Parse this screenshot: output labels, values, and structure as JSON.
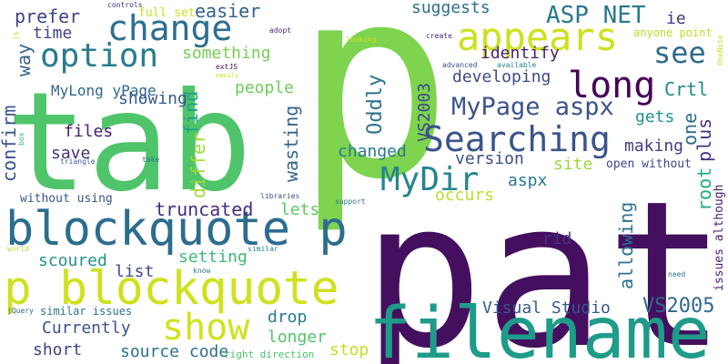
{
  "words": [
    {
      "text": "p",
      "color": "#7ed34f"
    },
    {
      "text": "path",
      "color": "#440f5e"
    },
    {
      "text": "tab",
      "color": "#4fc46a"
    },
    {
      "text": "filename",
      "color": "#1e9c89"
    },
    {
      "text": "blockquote p",
      "color": "#2c6d8e"
    },
    {
      "text": "p blockquote",
      "color": "#cfe11c"
    },
    {
      "text": "change",
      "color": "#2d6e8e"
    },
    {
      "text": "appears",
      "color": "#cde11d"
    },
    {
      "text": "option",
      "color": "#287d8e"
    },
    {
      "text": "long",
      "color": "#450458"
    },
    {
      "text": "see",
      "color": "#2f6b8e"
    },
    {
      "text": "Searching",
      "color": "#3a548c"
    },
    {
      "text": "MyDir",
      "color": "#25858e"
    },
    {
      "text": "MyPage aspx",
      "color": "#3b538b"
    },
    {
      "text": "show",
      "color": "#d0e11c"
    },
    {
      "text": "ASP NET",
      "color": "#2a778e"
    },
    {
      "text": "easier",
      "color": "#35608d"
    },
    {
      "text": "prefer",
      "color": "#414487"
    },
    {
      "text": "suggests",
      "color": "#2e6f8e"
    },
    {
      "text": "something",
      "color": "#75d054"
    },
    {
      "text": "identify",
      "color": "#481f70"
    },
    {
      "text": "developing",
      "color": "#3e4a89"
    },
    {
      "text": "Oddly",
      "color": "#2c728e"
    },
    {
      "text": "VS2003",
      "color": "#3f4788"
    },
    {
      "text": "MyLong yPage",
      "color": "#31688e"
    },
    {
      "text": "people",
      "color": "#6ccd5a"
    },
    {
      "text": "showing",
      "color": "#39568c"
    },
    {
      "text": "time",
      "color": "#404688"
    },
    {
      "text": "way",
      "color": "#33628d"
    },
    {
      "text": "files",
      "color": "#481b6d"
    },
    {
      "text": "save",
      "color": "#46327e"
    },
    {
      "text": "confirm",
      "color": "#3a548c"
    },
    {
      "text": "find",
      "color": "#1fa088"
    },
    {
      "text": "wasting",
      "color": "#32658e"
    },
    {
      "text": "differ",
      "color": "#a2da37"
    },
    {
      "text": "changed",
      "color": "#29788e"
    },
    {
      "text": "version",
      "color": "#3d4e8a"
    },
    {
      "text": "site",
      "color": "#9dd93b"
    },
    {
      "text": "making",
      "color": "#433e85"
    },
    {
      "text": "open without",
      "color": "#3e4989"
    },
    {
      "text": "Crtl",
      "color": "#23898e"
    },
    {
      "text": "gets",
      "color": "#21918c"
    },
    {
      "text": "one",
      "color": "#306a8e"
    },
    {
      "text": "plus",
      "color": "#46307e"
    },
    {
      "text": "root",
      "color": "#25ac82"
    },
    {
      "text": "occurs",
      "color": "#b8de29"
    },
    {
      "text": "aspx",
      "color": "#2a768e"
    },
    {
      "text": "truncated",
      "color": "#472f7d"
    },
    {
      "text": "lets",
      "color": "#5ec962"
    },
    {
      "text": "rid",
      "color": "#453781"
    },
    {
      "text": "allowing",
      "color": "#2d718e"
    },
    {
      "text": "setting",
      "color": "#3aba76"
    },
    {
      "text": "list",
      "color": "#3f4889"
    },
    {
      "text": "scoured",
      "color": "#21918c"
    },
    {
      "text": "drop",
      "color": "#29798e"
    },
    {
      "text": "Visual Studio",
      "color": "#38588c"
    },
    {
      "text": "VS2005",
      "color": "#31678e"
    },
    {
      "text": "Currently",
      "color": "#3b528b"
    },
    {
      "text": "longer",
      "color": "#52c569"
    },
    {
      "text": "short",
      "color": "#404387"
    },
    {
      "text": "source code",
      "color": "#2d708e"
    },
    {
      "text": "stop",
      "color": "#c2df23"
    },
    {
      "text": "similar issues",
      "color": "#2c738e"
    },
    {
      "text": "without using",
      "color": "#39558c"
    },
    {
      "text": "full set",
      "color": "#c8e020"
    },
    {
      "text": "ie",
      "color": "#46337f"
    },
    {
      "text": "anyone point",
      "color": "#bade28"
    },
    {
      "text": "issues although",
      "color": "#482071"
    },
    {
      "text": "right direction",
      "color": "#48c16e"
    },
    {
      "text": "controls",
      "color": "#472d7b"
    },
    {
      "text": "adopt",
      "color": "#482576"
    },
    {
      "text": "create",
      "color": "#482173"
    },
    {
      "text": "looking",
      "color": "#d2e21b"
    },
    {
      "text": "extJS",
      "color": "#470d60"
    },
    {
      "text": "easily",
      "color": "#cde11d"
    },
    {
      "text": "advanced",
      "color": "#3b528b"
    },
    {
      "text": "available",
      "color": "#25838e"
    },
    {
      "text": "OneNote",
      "color": "#c0df25"
    },
    {
      "text": "js",
      "color": "#c8e020"
    },
    {
      "text": "box",
      "color": "#35b779"
    },
    {
      "text": "triangle",
      "color": "#38598c"
    },
    {
      "text": "take",
      "color": "#2c728e"
    },
    {
      "text": "libraries",
      "color": "#3e4a89"
    },
    {
      "text": "support",
      "color": "#2d708e"
    },
    {
      "text": "similar",
      "color": "#26828e"
    },
    {
      "text": "world",
      "color": "#b5de2b"
    },
    {
      "text": "know",
      "color": "#2a788e"
    },
    {
      "text": "need",
      "color": "#2f6c8e"
    },
    {
      "text": "jQuery",
      "color": "#31678e"
    }
  ]
}
